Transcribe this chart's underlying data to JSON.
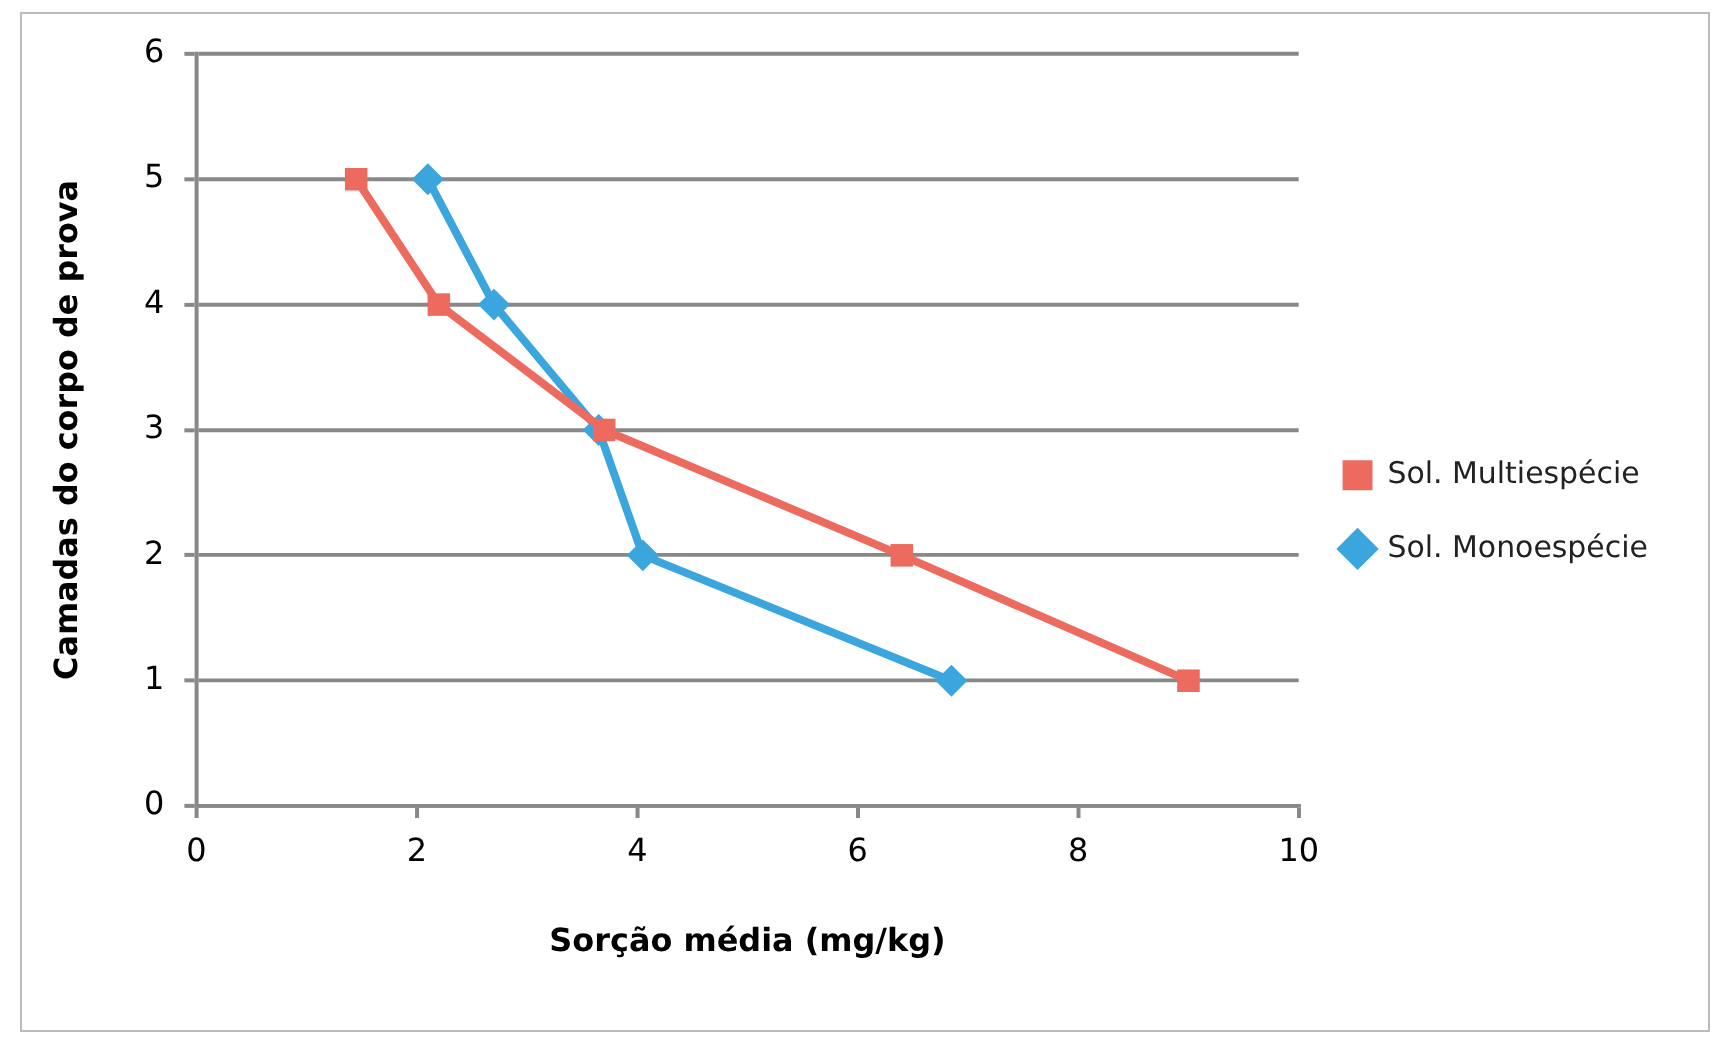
{
  "chart_data": {
    "type": "line",
    "xlabel": "Sorção média (mg/kg)",
    "ylabel": "Camadas do corpo de prova",
    "series": [
      {
        "name": "Sol. Monoespécie",
        "color": "#3aa6dd",
        "marker": "diamond",
        "x": [
          2.1,
          2.7,
          3.65,
          4.05,
          6.85
        ],
        "values": [
          5,
          4,
          3,
          2,
          1
        ]
      },
      {
        "name": "Sol. Multiespécie",
        "color": "#ec6a5e",
        "marker": "square",
        "x": [
          1.45,
          2.2,
          3.7,
          6.4,
          9
        ],
        "values": [
          5,
          4,
          3,
          2,
          1
        ]
      }
    ],
    "xlim": [
      0,
      10
    ],
    "xticks": [
      0,
      2,
      4,
      6,
      8,
      10
    ],
    "ylim": [
      0,
      6
    ],
    "yticks": [
      0,
      1,
      2,
      3,
      4,
      5,
      6
    ],
    "grid": "y",
    "legend": "right"
  }
}
